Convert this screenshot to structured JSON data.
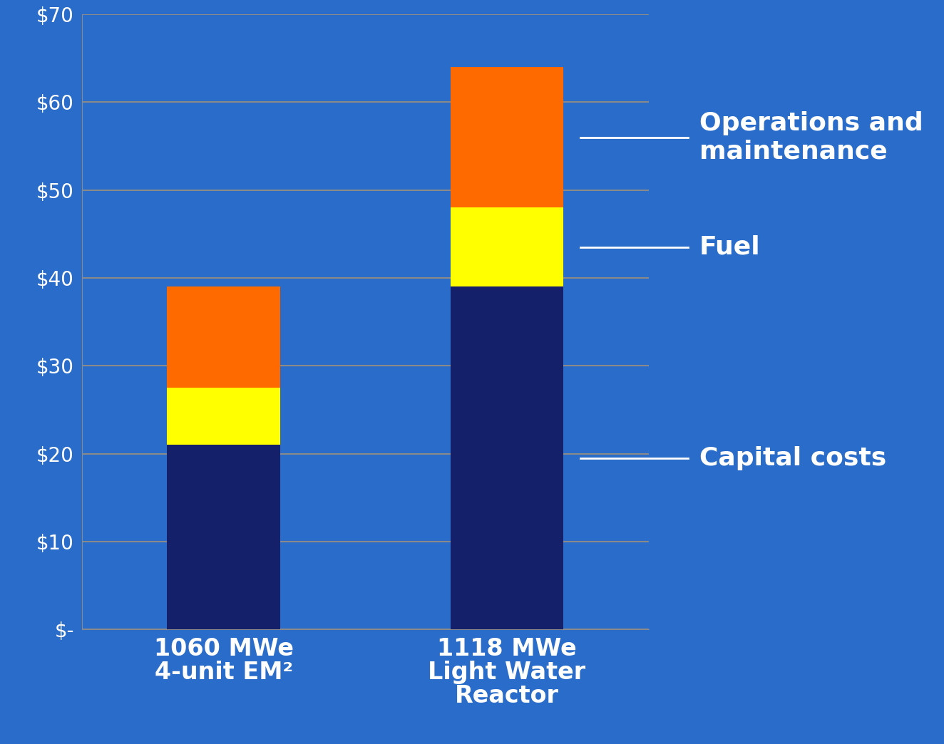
{
  "chart_data": {
    "type": "bar",
    "stacked": true,
    "grid": true,
    "categories": [
      "1060 MWe\n4-unit EM²",
      "1118 MWe\nLight Water\nReactor"
    ],
    "series": [
      {
        "name": "Capital costs",
        "color": "#14206a",
        "values": [
          21,
          39
        ]
      },
      {
        "name": "Fuel",
        "color": "#ffff00",
        "values": [
          6.5,
          9
        ]
      },
      {
        "name": "Operations and maintenance",
        "color": "#ff6a00",
        "values": [
          11.5,
          16
        ]
      }
    ],
    "ylim": [
      0,
      70
    ],
    "yticks": [
      {
        "value": 0,
        "label": "$-"
      },
      {
        "value": 10,
        "label": "$10"
      },
      {
        "value": 20,
        "label": "$20"
      },
      {
        "value": 30,
        "label": "$30"
      },
      {
        "value": 40,
        "label": "$40"
      },
      {
        "value": 50,
        "label": "$50"
      },
      {
        "value": 60,
        "label": "$60"
      },
      {
        "value": 70,
        "label": "$70"
      }
    ]
  }
}
